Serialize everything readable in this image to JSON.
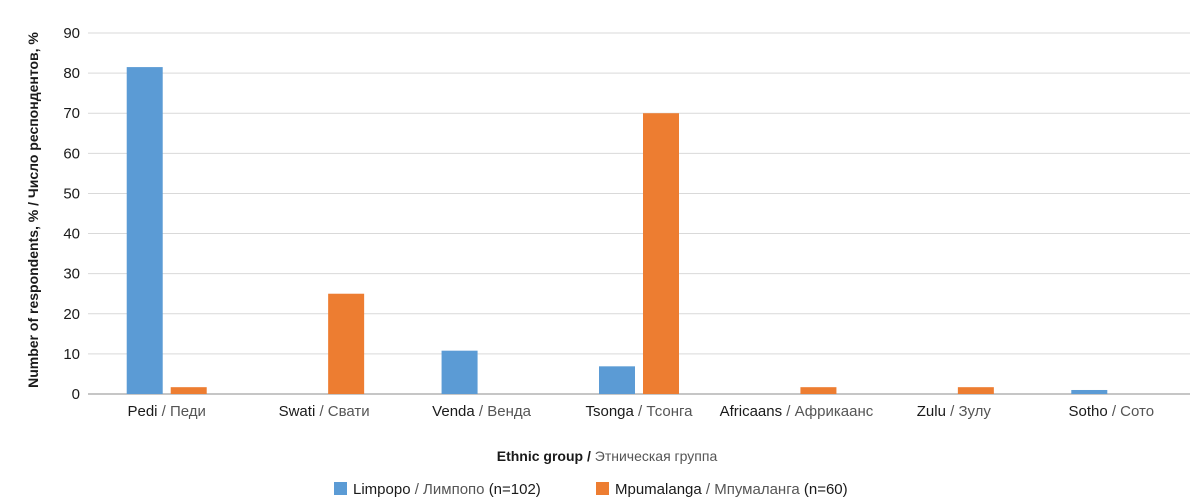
{
  "chart_data": {
    "type": "bar",
    "categories": [
      {
        "en": "Pedi",
        "ru": "Педи"
      },
      {
        "en": "Swati",
        "ru": "Свати"
      },
      {
        "en": "Venda",
        "ru": "Венда"
      },
      {
        "en": "Tsonga",
        "ru": "Тсонга"
      },
      {
        "en": "Africaans",
        "ru": "Африкаанс"
      },
      {
        "en": "Zulu",
        "ru": "Зулу"
      },
      {
        "en": "Sotho",
        "ru": "Сото"
      }
    ],
    "series": [
      {
        "name_en": "Limpopo",
        "name_ru": "Лимпопо",
        "n": "(n=102)",
        "color": "#5b9bd5",
        "values": [
          81.5,
          0,
          10.8,
          6.9,
          0,
          0,
          1.0
        ]
      },
      {
        "name_en": "Mpumalanga",
        "name_ru": "Мпумаланга",
        "n": "(n=60)",
        "color": "#ed7d31",
        "values": [
          1.7,
          25,
          0,
          70,
          1.7,
          1.7,
          0
        ]
      }
    ],
    "xlabel_en": "Ethnic group",
    "xlabel_ru": "Этническая группа",
    "ylabel": "Number of respondents, % / Число респондентов, %",
    "ylim": [
      0,
      90
    ],
    "yticks": [
      0,
      10,
      20,
      30,
      40,
      50,
      60,
      70,
      80,
      90
    ],
    "grid": true,
    "legend_position": "bottom"
  }
}
